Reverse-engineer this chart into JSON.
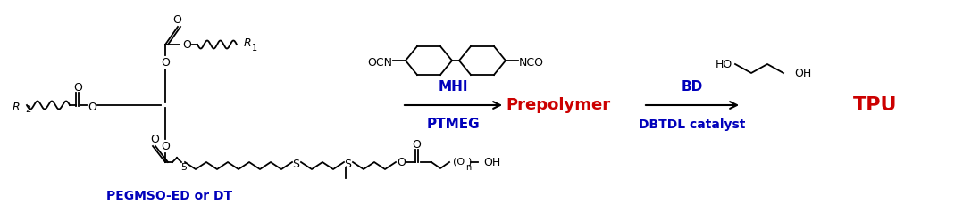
{
  "bg_color": "#ffffff",
  "black": "#000000",
  "blue": "#0000BB",
  "red": "#CC0000",
  "label_MHI": "MHI",
  "label_PTMEG": "PTMEG",
  "label_Prepolymer": "Prepolymer",
  "label_BD": "BD",
  "label_DBTDL": "DBTDL catalyst",
  "label_TPU": "TPU",
  "label_PEGMSO": "PEGMSO-ED or DT",
  "figsize": [
    10.87,
    2.38
  ],
  "dpi": 100
}
